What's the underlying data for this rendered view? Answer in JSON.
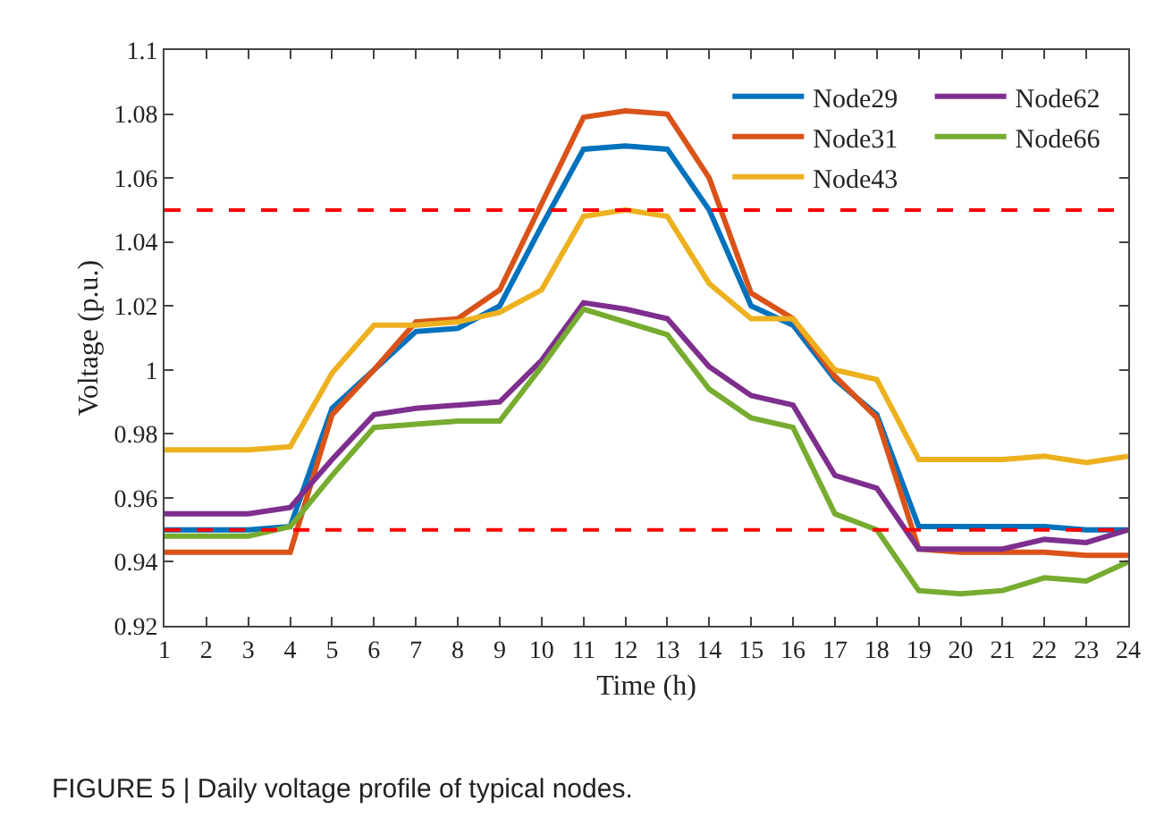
{
  "chart_data": {
    "type": "line",
    "xlabel": "Time (h)",
    "ylabel": "Voltage (p.u.)",
    "x": [
      1,
      2,
      3,
      4,
      5,
      6,
      7,
      8,
      9,
      10,
      11,
      12,
      13,
      14,
      15,
      16,
      17,
      18,
      19,
      20,
      21,
      22,
      23,
      24
    ],
    "xlim": [
      1,
      24
    ],
    "xticks": [
      1,
      2,
      3,
      4,
      5,
      6,
      7,
      8,
      9,
      10,
      11,
      12,
      13,
      14,
      15,
      16,
      17,
      18,
      19,
      20,
      21,
      22,
      23,
      24
    ],
    "ylim": [
      0.92,
      1.1
    ],
    "yticks": [
      0.92,
      0.94,
      0.96,
      0.98,
      {
        "value": 1,
        "label": "1"
      },
      1.02,
      1.04,
      1.06,
      1.08,
      1.1
    ],
    "grid": false,
    "legend": "top right",
    "line_style": "solid",
    "marker": "none",
    "series": [
      {
        "name": "Node29",
        "color": "#0072bd",
        "values": [
          0.95,
          0.95,
          0.95,
          0.951,
          0.988,
          1.0,
          1.012,
          1.013,
          1.02,
          1.045,
          1.069,
          1.07,
          1.069,
          1.05,
          1.02,
          1.014,
          0.997,
          0.986,
          0.951,
          0.951,
          0.951,
          0.951,
          0.95,
          0.95
        ]
      },
      {
        "name": "Node31",
        "color": "#d95319",
        "values": [
          0.943,
          0.943,
          0.943,
          0.943,
          0.986,
          1.0,
          1.015,
          1.016,
          1.025,
          1.052,
          1.079,
          1.081,
          1.08,
          1.06,
          1.024,
          1.016,
          0.998,
          0.985,
          0.944,
          0.943,
          0.943,
          0.943,
          0.942,
          0.942
        ]
      },
      {
        "name": "Node43",
        "color": "#edb120",
        "values": [
          0.975,
          0.975,
          0.975,
          0.976,
          0.999,
          1.014,
          1.014,
          1.015,
          1.018,
          1.025,
          1.048,
          1.05,
          1.048,
          1.027,
          1.016,
          1.016,
          1.0,
          0.997,
          0.972,
          0.972,
          0.972,
          0.973,
          0.971,
          0.973
        ]
      },
      {
        "name": "Node62",
        "color": "#7e2f8e",
        "values": [
          0.955,
          0.955,
          0.955,
          0.957,
          0.972,
          0.986,
          0.988,
          0.989,
          0.99,
          1.003,
          1.021,
          1.019,
          1.016,
          1.001,
          0.992,
          0.989,
          0.967,
          0.963,
          0.944,
          0.944,
          0.944,
          0.947,
          0.946,
          0.95
        ]
      },
      {
        "name": "Node66",
        "color": "#77ac30",
        "values": [
          0.948,
          0.948,
          0.948,
          0.951,
          0.967,
          0.982,
          0.983,
          0.984,
          0.984,
          1.001,
          1.019,
          1.015,
          1.011,
          0.994,
          0.985,
          0.982,
          0.955,
          0.95,
          0.931,
          0.93,
          0.931,
          0.935,
          0.934,
          0.94
        ]
      }
    ],
    "ref_lines": [
      {
        "axis": "y",
        "value": 1.05,
        "color": "#ff0000",
        "line_style": "dashed"
      },
      {
        "axis": "y",
        "value": 0.95,
        "color": "#ff0000",
        "line_style": "dashed"
      }
    ],
    "annotations": [
      "FIGURE 5 | Daily voltage profile of typical nodes."
    ]
  }
}
